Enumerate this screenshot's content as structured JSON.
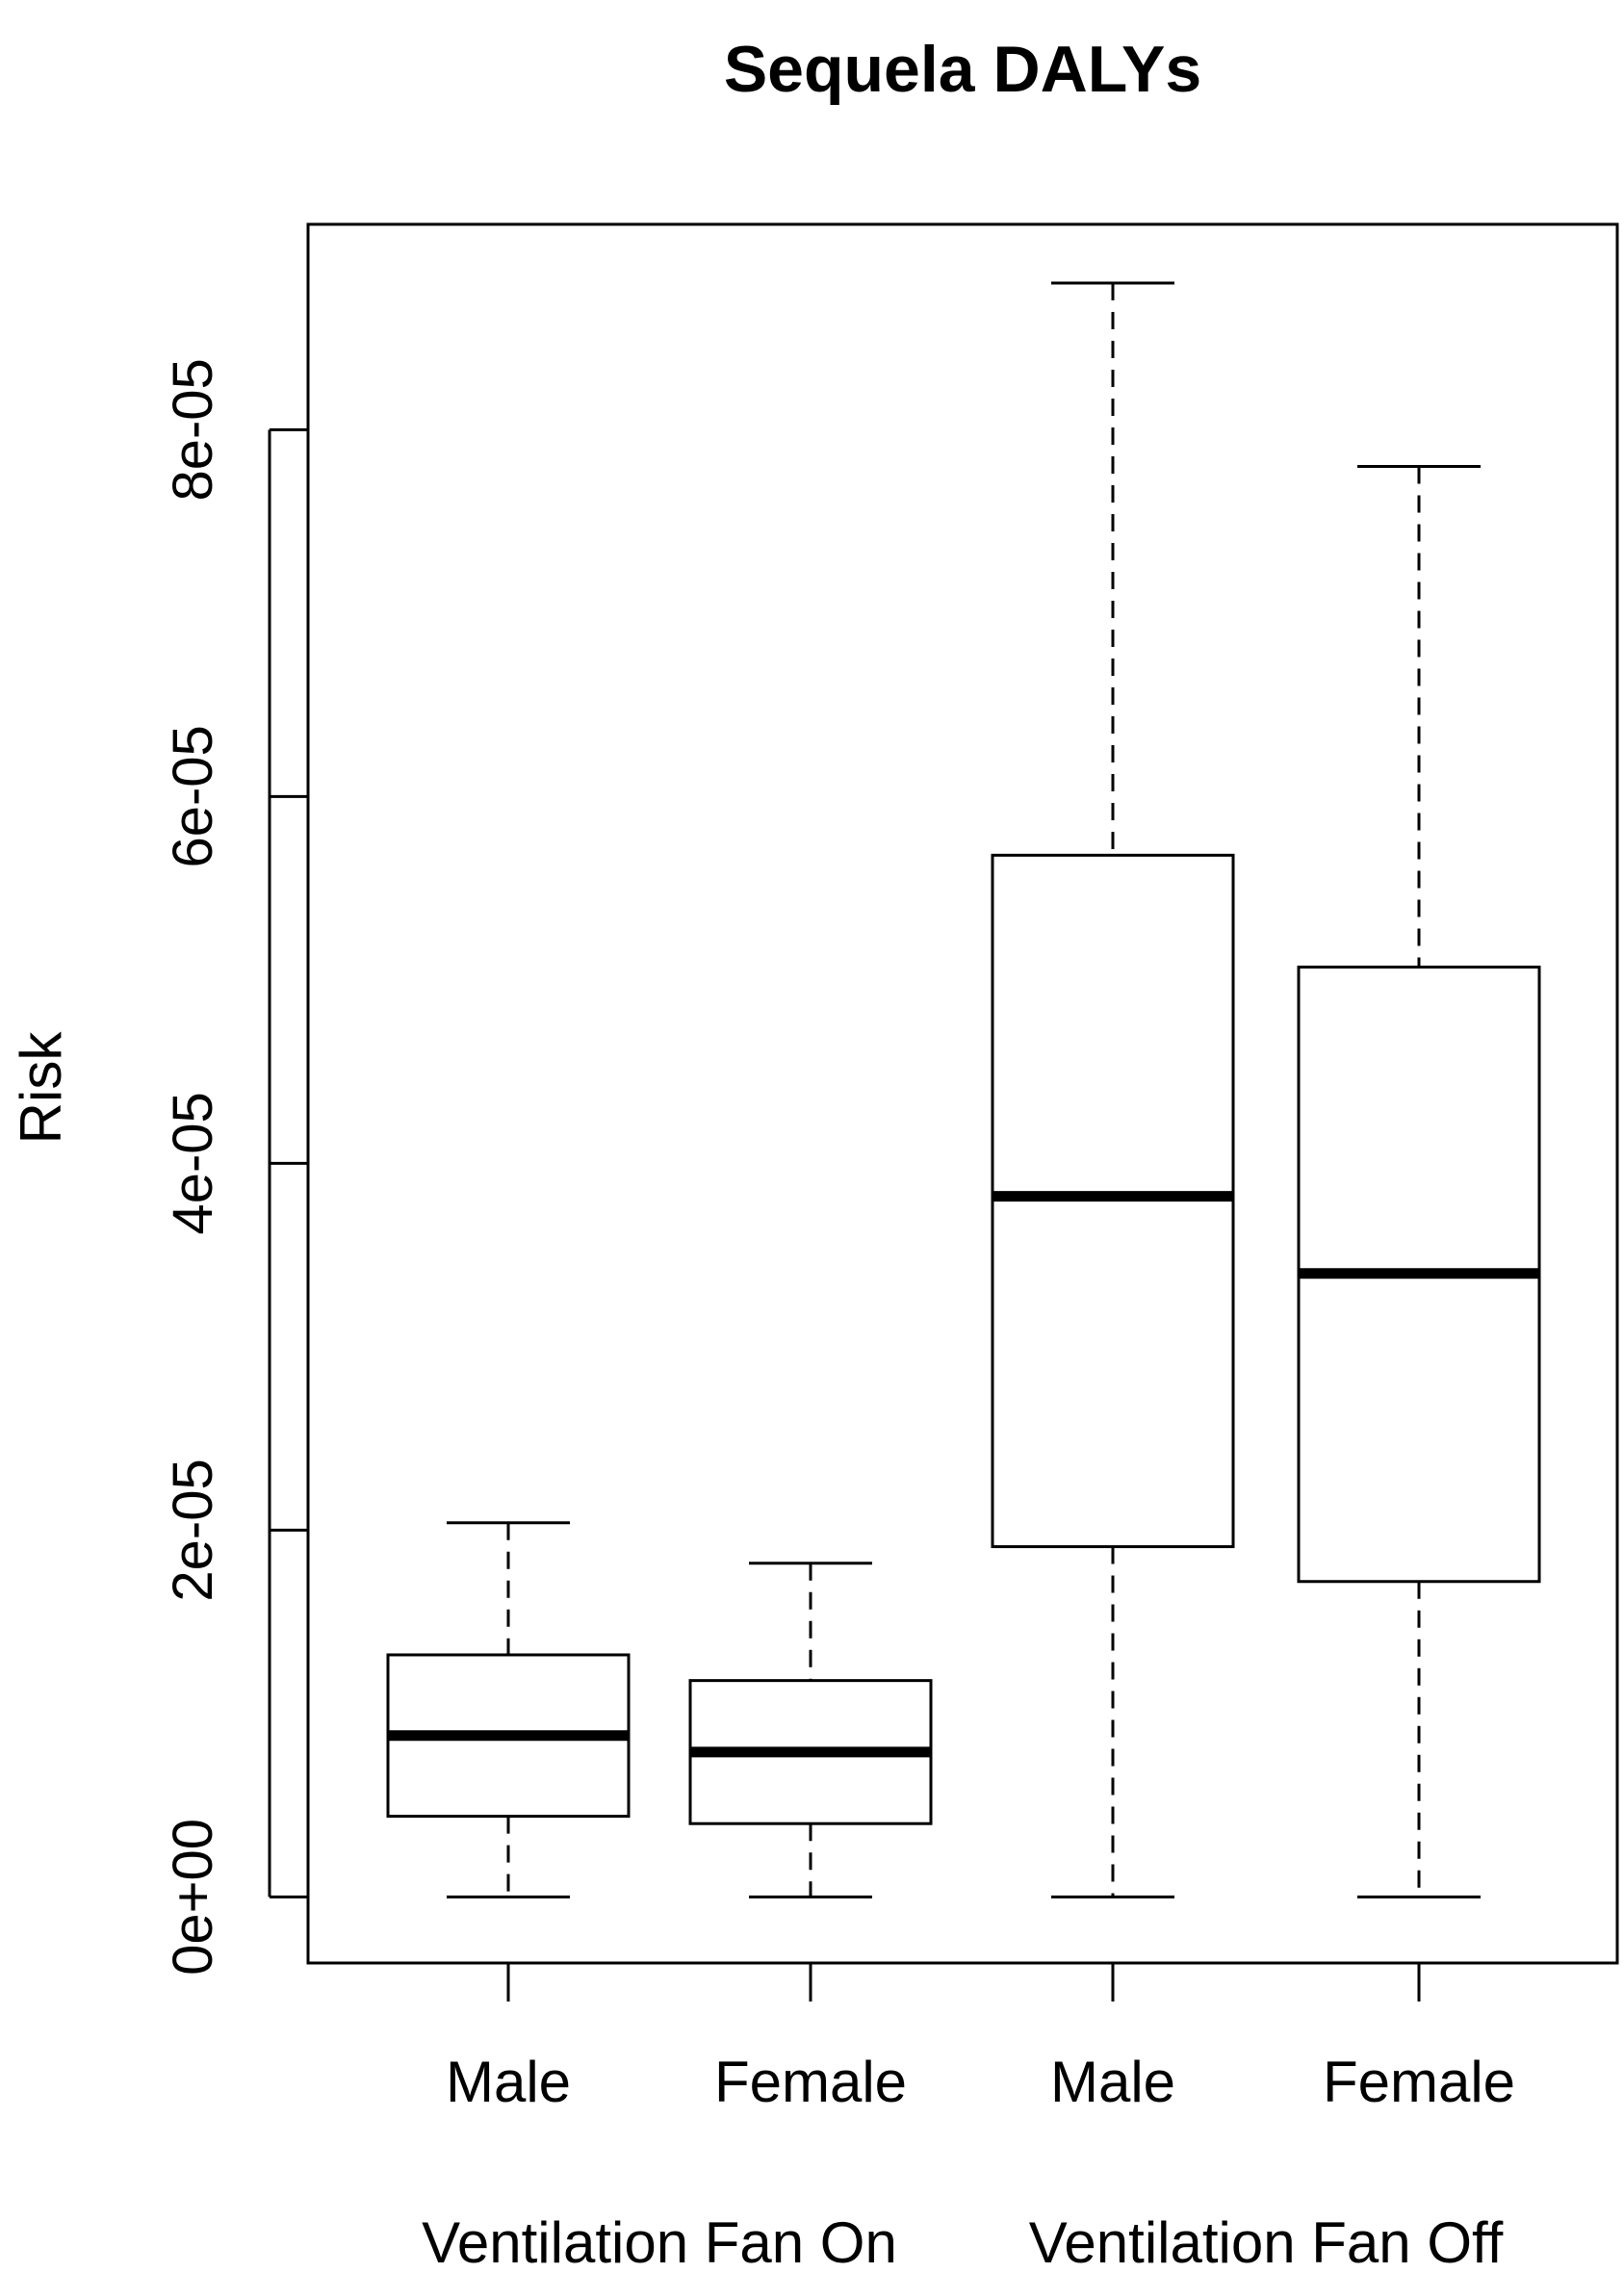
{
  "chart_data": {
    "type": "boxplot",
    "title": "Sequela DALYs",
    "xlabel": "",
    "ylabel": "Risk",
    "ylim": [
      -3.6e-06,
      9.12e-05
    ],
    "y_ticks": [
      "0e+00",
      "2e-05",
      "4e-05",
      "6e-05",
      "8e-05"
    ],
    "y_tick_values": [
      0,
      2e-05,
      4e-05,
      6e-05,
      8e-05
    ],
    "categories": [
      "Male",
      "Female",
      "Male",
      "Female"
    ],
    "groups": [
      {
        "label": "Ventilation Fan On",
        "categories": [
          0,
          1
        ]
      },
      {
        "label": "Ventilation Fan Off",
        "categories": [
          2,
          3
        ]
      }
    ],
    "boxes": [
      {
        "category": "Male",
        "min": 0,
        "q1": 4.4e-06,
        "median": 8.8e-06,
        "q3": 1.32e-05,
        "max": 2.04e-05
      },
      {
        "category": "Female",
        "min": 0,
        "q1": 4e-06,
        "median": 7.9e-06,
        "q3": 1.18e-05,
        "max": 1.82e-05
      },
      {
        "category": "Male",
        "min": 0,
        "q1": 1.91e-05,
        "median": 3.82e-05,
        "q3": 5.68e-05,
        "max": 8.8e-05
      },
      {
        "category": "Female",
        "min": 0,
        "q1": 1.72e-05,
        "median": 3.4e-05,
        "q3": 5.07e-05,
        "max": 7.8e-05
      }
    ],
    "grid": false,
    "legend": "none",
    "colors": {
      "stroke": "#000000",
      "fill": "#ffffff"
    }
  }
}
